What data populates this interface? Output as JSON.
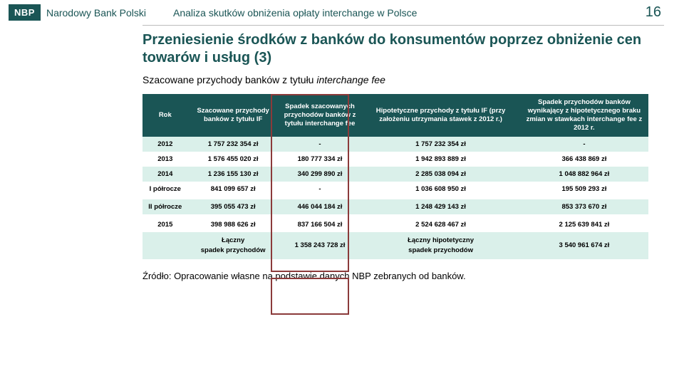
{
  "header": {
    "logo": "NBP",
    "brand": "Narodowy Bank Polski",
    "analysis": "Analiza skutków obniżenia opłaty interchange w Polsce",
    "slideNumber": "16"
  },
  "headline": "Przeniesienie środków z banków do konsumentów poprzez obniżenie cen towarów i usług (3)",
  "subhead_pre": "Szacowane przychody banków z tytułu ",
  "subhead_ital": "interchange fee",
  "columns": {
    "rok": "Rok",
    "c1": "Szacowane przychody banków z tytułu IF",
    "c2": "Spadek szacowanych przychodów banków z tytułu interchange fee",
    "c3": "Hipotetyczne przychody z tytułu IF (przy założeniu utrzymania stawek z 2012 r.)",
    "c4": "Spadek przychodów banków wynikający z hipotetycznego braku zmian w stawkach interchange fee z 2012 r."
  },
  "rows": {
    "r0": {
      "rok": "2012",
      "c1": "1 757 232 354 zł",
      "c2": "-",
      "c3": "1 757 232 354 zł",
      "c4": "-"
    },
    "r1": {
      "rok": "2013",
      "c1": "1 576 455 020 zł",
      "c2": "180 777 334 zł",
      "c3": "1 942 893 889 zł",
      "c4": "366 438 869 zł"
    },
    "r2": {
      "rok": "2014",
      "c1": "1 236 155 130 zł",
      "c2": "340 299 890 zł",
      "c3": "2 285 038 094 zł",
      "c4": "1 048 882 964 zł"
    },
    "r3": {
      "rok": "I półrocze",
      "c1": "841 099 657 zł",
      "c2": "-",
      "c3": "1 036 608 950 zł",
      "c4": "195 509 293 zł"
    },
    "r4": {
      "rok": "II półrocze",
      "c1": "395 055 473 zł",
      "c2": "446 044 184 zł",
      "c3": "1 248 429 143 zł",
      "c4": "853 373 670 zł"
    },
    "r5": {
      "rok": "2015",
      "c1": "398 988 626 zł",
      "c2": "837 166 504 zł",
      "c3": "2 524 628 467 zł",
      "c4": "2 125 639 841 zł"
    }
  },
  "summary": {
    "leftLabel1": "Łączny",
    "leftLabel2": "spadek przychodów",
    "val1": "1 358 243 728 zł",
    "rightLabel1": "Łączny hipotetyczny",
    "rightLabel2": "spadek przychodów",
    "val2": "3 540 961 674 zł"
  },
  "source": "Źródło: Opracowanie własne na podstawie danych NBP zebranych od banków."
}
